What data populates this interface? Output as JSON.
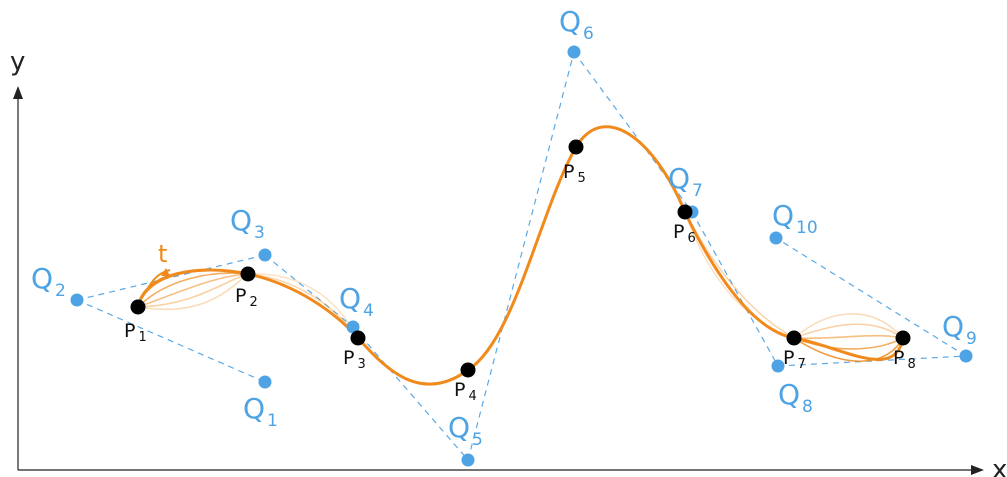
{
  "axes": {
    "x_label": "x",
    "y_label": "y"
  },
  "parameter_label": "t",
  "control_points": [
    {
      "letter": "Q",
      "sub": "1"
    },
    {
      "letter": "Q",
      "sub": "2"
    },
    {
      "letter": "Q",
      "sub": "3"
    },
    {
      "letter": "Q",
      "sub": "4"
    },
    {
      "letter": "Q",
      "sub": "5"
    },
    {
      "letter": "Q",
      "sub": "6"
    },
    {
      "letter": "Q",
      "sub": "7"
    },
    {
      "letter": "Q",
      "sub": "8"
    },
    {
      "letter": "Q",
      "sub": "9"
    },
    {
      "letter": "Q",
      "sub": "10"
    }
  ],
  "curve_points": [
    {
      "letter": "P",
      "sub": "1"
    },
    {
      "letter": "P",
      "sub": "2"
    },
    {
      "letter": "P",
      "sub": "3"
    },
    {
      "letter": "P",
      "sub": "4"
    },
    {
      "letter": "P",
      "sub": "5"
    },
    {
      "letter": "P",
      "sub": "6"
    },
    {
      "letter": "P",
      "sub": "7"
    },
    {
      "letter": "P",
      "sub": "8"
    }
  ],
  "colors": {
    "curve": "#f08a1c",
    "control_points": "#4ea3e4",
    "curve_points": "#000000",
    "axes": "#222222"
  }
}
